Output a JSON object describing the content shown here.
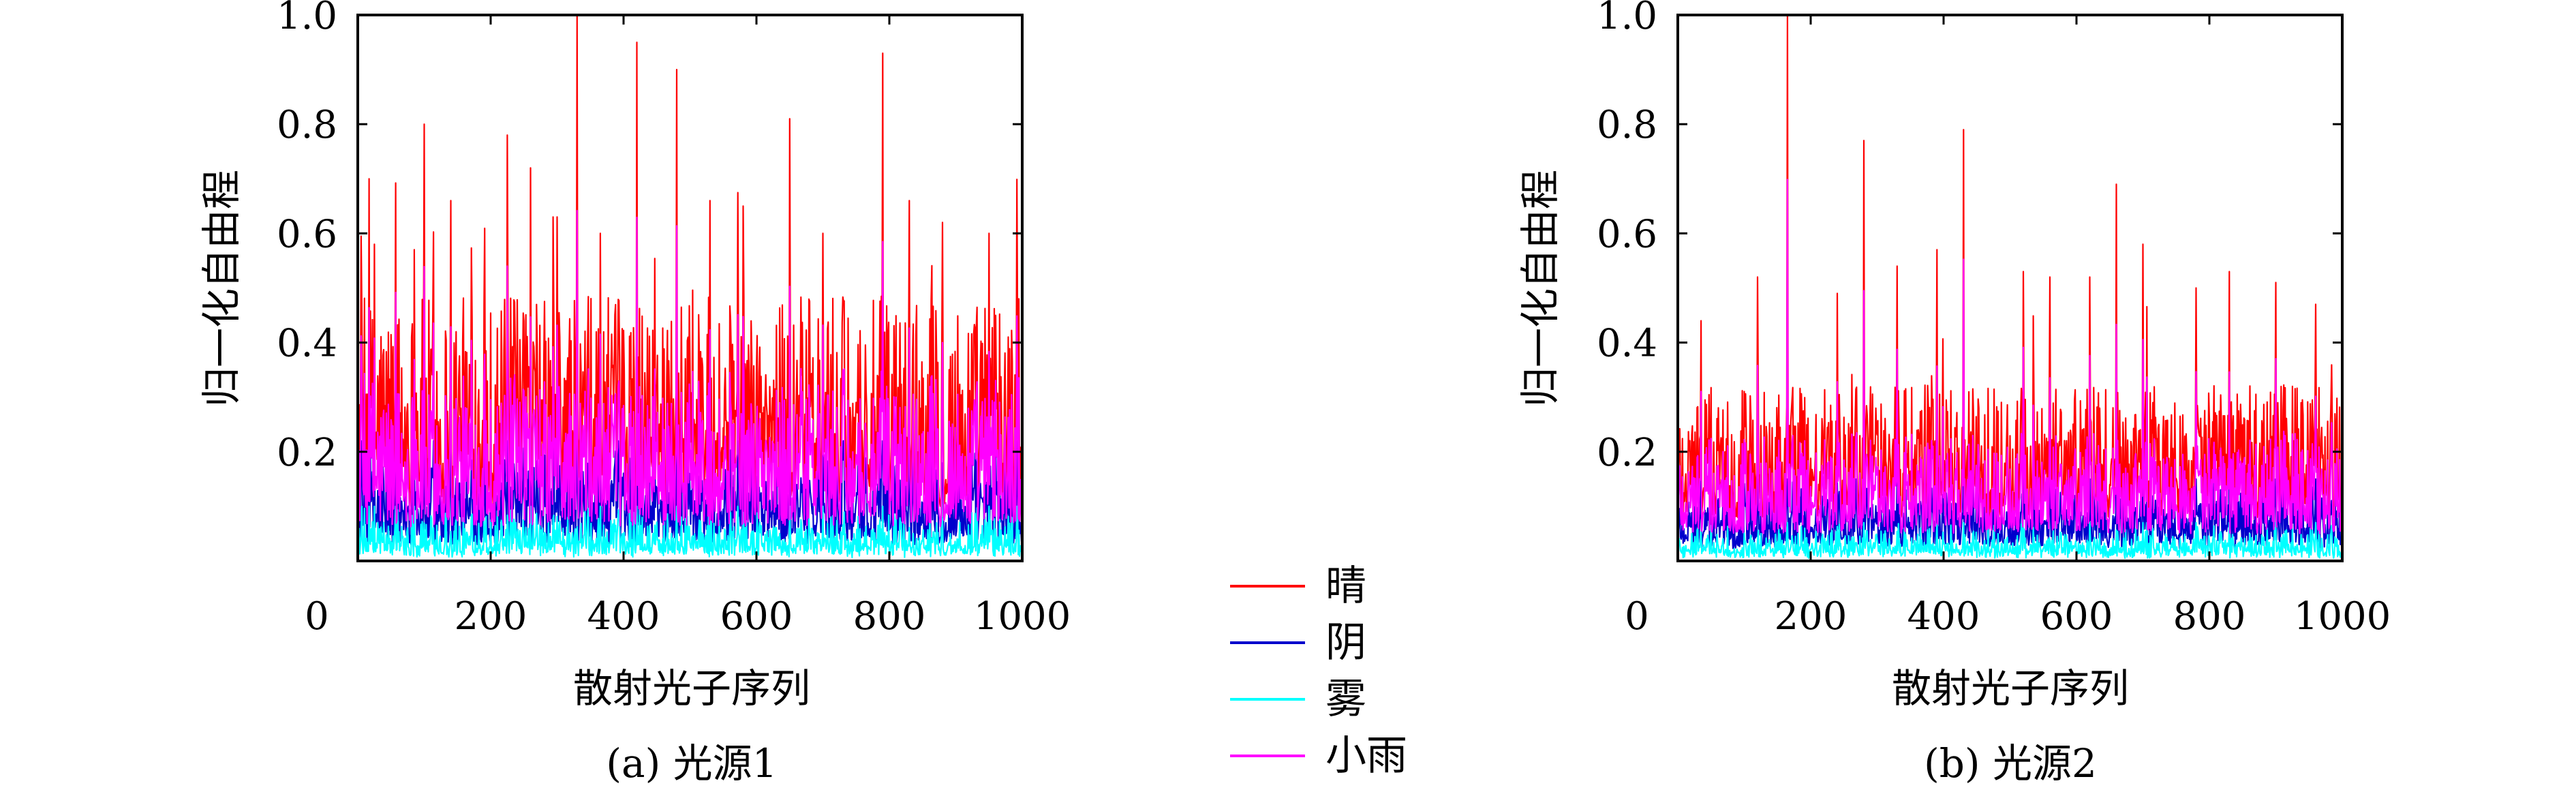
{
  "chart_data": [
    {
      "type": "line",
      "caption": "(a) 光源1",
      "xlabel": "散射光子序列",
      "ylabel": "归一化自由程",
      "xlim": [
        0,
        1000
      ],
      "ylim": [
        0,
        1.0
      ],
      "x_ticks": [
        "0",
        "200",
        "400",
        "600",
        "800",
        "1000"
      ],
      "y_ticks": [
        "0.2",
        "0.4",
        "0.6",
        "0.8",
        "1.0"
      ],
      "grid": false,
      "x": {
        "start": 1,
        "end": 1000,
        "count": 1000
      },
      "series": [
        {
          "name": "晴",
          "color": "#ff0000",
          "typical_range": [
            0.1,
            0.45
          ],
          "max": 1.0,
          "peaks": [
            [
              25,
              0.58
            ],
            [
              85,
              0.57
            ],
            [
              100,
              0.8
            ],
            [
              140,
              0.66
            ],
            [
              225,
              0.78
            ],
            [
              260,
              0.72
            ],
            [
              300,
              0.63
            ],
            [
              330,
              1.0
            ],
            [
              365,
              0.6
            ],
            [
              420,
              0.95
            ],
            [
              480,
              0.9
            ],
            [
              530,
              0.66
            ],
            [
              580,
              0.65
            ],
            [
              650,
              0.81
            ],
            [
              700,
              0.6
            ],
            [
              790,
              0.93
            ],
            [
              830,
              0.66
            ],
            [
              880,
              0.62
            ],
            [
              950,
              0.6
            ],
            [
              995,
              0.48
            ]
          ]
        },
        {
          "name": "阴",
          "color": "#0000cc",
          "typical_range": [
            0.02,
            0.18
          ],
          "max": 0.22
        },
        {
          "name": "雾",
          "color": "#00ffff",
          "typical_range": [
            0.0,
            0.06
          ],
          "max": 0.1
        },
        {
          "name": "小雨",
          "color": "#ff00ff",
          "typical_range": [
            0.05,
            0.3
          ],
          "max": 0.77
        }
      ]
    },
    {
      "type": "line",
      "caption": "(b) 光源2",
      "xlabel": "散射光子序列",
      "ylabel": "归一化自由程",
      "xlim": [
        0,
        1000
      ],
      "ylim": [
        0,
        1.0
      ],
      "x_ticks": [
        "0",
        "200",
        "400",
        "600",
        "800",
        "1000"
      ],
      "y_ticks": [
        "0.2",
        "0.4",
        "0.6",
        "0.8",
        "1.0"
      ],
      "grid": false,
      "x": {
        "start": 1,
        "end": 1000,
        "count": 1000
      },
      "series": [
        {
          "name": "晴",
          "color": "#ff0000",
          "typical_range": [
            0.08,
            0.3
          ],
          "max": 1.0,
          "peaks": [
            [
              35,
              0.44
            ],
            [
              120,
              0.52
            ],
            [
              165,
              1.0
            ],
            [
              240,
              0.49
            ],
            [
              280,
              0.77
            ],
            [
              330,
              0.54
            ],
            [
              390,
              0.57
            ],
            [
              430,
              0.79
            ],
            [
              520,
              0.53
            ],
            [
              560,
              0.52
            ],
            [
              620,
              0.52
            ],
            [
              660,
              0.69
            ],
            [
              700,
              0.58
            ],
            [
              780,
              0.5
            ],
            [
              830,
              0.53
            ],
            [
              900,
              0.51
            ],
            [
              960,
              0.47
            ]
          ]
        },
        {
          "name": "阴",
          "color": "#0000cc",
          "typical_range": [
            0.02,
            0.12
          ],
          "max": 0.15
        },
        {
          "name": "雾",
          "color": "#00ffff",
          "typical_range": [
            0.0,
            0.04
          ],
          "max": 0.07
        },
        {
          "name": "小雨",
          "color": "#ff00ff",
          "typical_range": [
            0.04,
            0.22
          ],
          "max": 0.77
        }
      ]
    }
  ],
  "legend": {
    "placement": "bottom-center",
    "items": [
      {
        "label": "晴",
        "color": "#ff0000"
      },
      {
        "label": "阴",
        "color": "#0000cc"
      },
      {
        "label": "雾",
        "color": "#00ffff"
      },
      {
        "label": "小雨",
        "color": "#ff00ff"
      }
    ]
  }
}
